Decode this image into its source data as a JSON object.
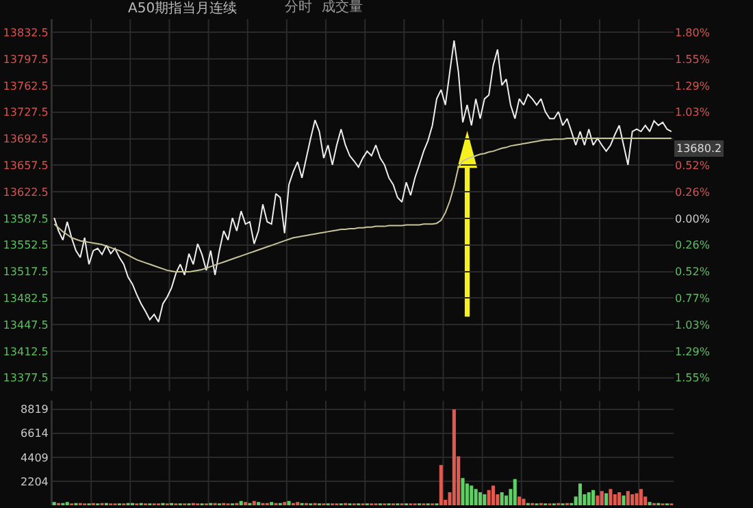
{
  "chart_data": [
    {
      "type": "line",
      "title": "A50期指当月连续",
      "annotations": [
        "分时",
        "成交量",
        {
          "text": "13680.2",
          "y": 13680.2
        }
      ],
      "categories": [
        null,
        null,
        null,
        null,
        null,
        null,
        null,
        null,
        null,
        null,
        null,
        null,
        null,
        null,
        null,
        null,
        null,
        null,
        null,
        null,
        null,
        null,
        null,
        null,
        null,
        null,
        null,
        null,
        null,
        null,
        null,
        null,
        null,
        null,
        null,
        null,
        null,
        null,
        null,
        null,
        null,
        null,
        null,
        null,
        null,
        null,
        null,
        null,
        null,
        null,
        null,
        null,
        null,
        null,
        null,
        null,
        null,
        null,
        null,
        null,
        null,
        null,
        null,
        null,
        null,
        null,
        null,
        null,
        null,
        null,
        null,
        null,
        null,
        null,
        null,
        null,
        null,
        null,
        null,
        null,
        null,
        null,
        null,
        null,
        null,
        null,
        null,
        null,
        null,
        null,
        null,
        null,
        null,
        null,
        null,
        null,
        null,
        null,
        null,
        null,
        null,
        null,
        null,
        null,
        null,
        null,
        null,
        null,
        null,
        null,
        null,
        null,
        null,
        null,
        null,
        null,
        null,
        null,
        null,
        null,
        null,
        null,
        null,
        null,
        null,
        null,
        null,
        null,
        null,
        null,
        null,
        null,
        null,
        null,
        null,
        null,
        null,
        null,
        null,
        null,
        null,
        null,
        null
      ],
      "series": [
        {
          "color": "#eeeeee",
          "values": [
            13588,
            13571,
            13559,
            13583,
            13562,
            13545,
            13536,
            13562,
            13527,
            13545,
            13548,
            13540,
            13552,
            13541,
            13548,
            13536,
            13527,
            13510,
            13501,
            13487,
            13475,
            13465,
            13454,
            13461,
            13451,
            13475,
            13484,
            13496,
            13515,
            13527,
            13513,
            13541,
            13527,
            13554,
            13540,
            13519,
            13545,
            13513,
            13545,
            13571,
            13559,
            13588,
            13571,
            13597,
            13580,
            13583,
            13554,
            13571,
            13606,
            13583,
            13580,
            13620,
            13615,
            13568,
            13632,
            13649,
            13662,
            13641,
            13667,
            13693,
            13717,
            13702,
            13667,
            13684,
            13658,
            13684,
            13705,
            13684,
            13670,
            13663,
            13655,
            13667,
            13676,
            13670,
            13684,
            13667,
            13658,
            13641,
            13632,
            13615,
            13609,
            13635,
            13618,
            13641,
            13658,
            13676,
            13690,
            13710,
            13745,
            13757,
            13737,
            13780,
            13822,
            13780,
            13714,
            13737,
            13710,
            13745,
            13719,
            13745,
            13750,
            13789,
            13810,
            13763,
            13771,
            13737,
            13719,
            13745,
            13737,
            13751,
            13745,
            13737,
            13745,
            13728,
            13719,
            13719,
            13728,
            13710,
            13719,
            13702,
            13684,
            13702,
            13684,
            13705,
            13684,
            13693,
            13684,
            13676,
            13684,
            13698,
            13710,
            13684,
            13658,
            13702,
            13705,
            13702,
            13710,
            13702,
            13716,
            13710,
            13714,
            13705,
            13702
          ]
        },
        {
          "color": "#c9c49a",
          "values": [
            13580,
            13575,
            13570,
            13566,
            13562,
            13560,
            13558,
            13557,
            13556,
            13555,
            13554,
            13553,
            13551,
            13549,
            13547,
            13545,
            13542,
            13539,
            13536,
            13533,
            13531,
            13529,
            13527,
            13525,
            13523,
            13521,
            13519,
            13518,
            13517,
            13517,
            13517,
            13517,
            13518,
            13519,
            13520,
            13522,
            13524,
            13526,
            13528,
            13530,
            13532,
            13534,
            13536,
            13538,
            13540,
            13542,
            13544,
            13546,
            13548,
            13550,
            13552,
            13554,
            13556,
            13558,
            13560,
            13562,
            13563,
            13564,
            13565,
            13566,
            13567,
            13568,
            13569,
            13570,
            13571,
            13572,
            13573,
            13573,
            13574,
            13574,
            13575,
            13575,
            13576,
            13576,
            13577,
            13577,
            13577,
            13578,
            13578,
            13578,
            13578,
            13579,
            13579,
            13579,
            13579,
            13580,
            13580,
            13580,
            13581,
            13585,
            13595,
            13610,
            13630,
            13655,
            13663,
            13666,
            13668,
            13670,
            13672,
            13673,
            13675,
            13676,
            13678,
            13680,
            13681,
            13683,
            13684,
            13685,
            13686,
            13687,
            13688,
            13689,
            13690,
            13691,
            13691,
            13692,
            13692,
            13692,
            13693,
            13693,
            13693,
            13693,
            13693,
            13693,
            13693,
            13693,
            13693,
            13693,
            13693,
            13693,
            13693,
            13693,
            13693,
            13693,
            13693,
            13693,
            13693,
            13693,
            13693,
            13693,
            13693,
            13693,
            13693
          ]
        }
      ],
      "ylim": [
        13360,
        13850
      ],
      "yticks": [
        13377.5,
        13412.5,
        13447.5,
        13482.5,
        13517.5,
        13552.5,
        13587.5,
        13622.5,
        13657.5,
        13692.5,
        13727.5,
        13762.5,
        13797.5,
        13832.5
      ],
      "y2lim": [
        -1.6744,
        1.9319
      ],
      "y2ticks": [
        {
          "value": -1.546,
          "label": "1.55%"
        },
        {
          "value": -1.288,
          "label": "1.29%"
        },
        {
          "value": -1.03,
          "label": "1.03%"
        },
        {
          "value": -0.773,
          "label": "0.77%"
        },
        {
          "value": -0.515,
          "label": "0.52%"
        },
        {
          "value": -0.258,
          "label": "0.26%"
        },
        {
          "value": 0,
          "label": "0.00%"
        },
        {
          "value": 0.258,
          "label": "0.26%"
        },
        {
          "value": 0.515,
          "label": "0.52%"
        },
        {
          "value": 0.773,
          "label": null
        },
        {
          "value": 1.03,
          "label": "1.03%"
        },
        {
          "value": 1.288,
          "label": "1.29%"
        },
        {
          "value": 1.546,
          "label": "1.55%"
        },
        {
          "value": 1.803,
          "label": "1.80%"
        }
      ],
      "grid": true
    },
    {
      "type": "bar",
      "categories": [
        null,
        null,
        null,
        null,
        null,
        null,
        null,
        null,
        null,
        null,
        null,
        null,
        null,
        null,
        null,
        null,
        null,
        null,
        null,
        null,
        null,
        null,
        null,
        null,
        null,
        null,
        null,
        null,
        null,
        null,
        null,
        null,
        null,
        null,
        null,
        null,
        null,
        null,
        null,
        null,
        null,
        null,
        null,
        null,
        null,
        null,
        null,
        null,
        null,
        null,
        null,
        null,
        null,
        null,
        null,
        null,
        null,
        null,
        null,
        null,
        null,
        null,
        null,
        null,
        null,
        null,
        null,
        null,
        null,
        null,
        null,
        null,
        null,
        null,
        null,
        null,
        null,
        null,
        null,
        null,
        null,
        null,
        null,
        null,
        null,
        null,
        null,
        null,
        null,
        null,
        null,
        null,
        null,
        null,
        null,
        null,
        null,
        null,
        null,
        null,
        null,
        null,
        null,
        null,
        null,
        null,
        null,
        null,
        null,
        null,
        null,
        null,
        null,
        null,
        null,
        null,
        null,
        null,
        null,
        null,
        null,
        null,
        null,
        null,
        null,
        null,
        null,
        null,
        null,
        null,
        null,
        null,
        null,
        null,
        null,
        null,
        null,
        null,
        null,
        null,
        null,
        null,
        null
      ],
      "values": [
        300,
        200,
        200,
        300,
        100,
        200,
        200,
        100,
        100,
        200,
        100,
        200,
        200,
        100,
        100,
        100,
        100,
        200,
        200,
        100,
        200,
        100,
        100,
        100,
        100,
        200,
        100,
        200,
        100,
        100,
        100,
        100,
        200,
        100,
        100,
        100,
        200,
        200,
        100,
        200,
        100,
        100,
        200,
        400,
        300,
        200,
        400,
        300,
        200,
        200,
        300,
        200,
        200,
        300,
        400,
        200,
        300,
        200,
        200,
        100,
        200,
        100,
        100,
        100,
        100,
        100,
        100,
        200,
        100,
        100,
        100,
        100,
        100,
        100,
        100,
        100,
        100,
        100,
        100,
        100,
        100,
        100,
        100,
        100,
        100,
        100,
        100,
        100,
        100,
        3700,
        500,
        1200,
        8800,
        4500,
        2500,
        2000,
        1800,
        1500,
        1200,
        1000,
        1400,
        1800,
        1000,
        1200,
        900,
        1500,
        2400,
        800,
        600,
        200,
        200,
        100,
        200,
        100,
        100,
        100,
        200,
        100,
        200,
        200,
        800,
        2000,
        1000,
        1200,
        1400,
        900,
        1300,
        1100,
        1500,
        1000,
        1200,
        900,
        1300,
        1000,
        1100,
        1500,
        800,
        300,
        200,
        200,
        100,
        100,
        100
      ],
      "colors": [
        "#5fcf65",
        "#e05a4f",
        "#5fcf65",
        "#5fcf65",
        "#e05a4f",
        "#5fcf65",
        "#e05a4f",
        "#e05a4f",
        "#5fcf65",
        "#e05a4f",
        "#5fcf65",
        "#e05a4f",
        "#5fcf65",
        "#e05a4f",
        "#e05a4f",
        "#5fcf65",
        "#e05a4f",
        "#5fcf65",
        "#5fcf65",
        "#e05a4f",
        "#5fcf65",
        "#e05a4f",
        "#5fcf65",
        "#e05a4f",
        "#e05a4f",
        "#5fcf65",
        "#e05a4f",
        "#5fcf65",
        "#e05a4f",
        "#5fcf65",
        "#e05a4f",
        "#5fcf65",
        "#e05a4f",
        "#e05a4f",
        "#5fcf65",
        "#e05a4f",
        "#5fcf65",
        "#e05a4f",
        "#5fcf65",
        "#e05a4f",
        "#e05a4f",
        "#5fcf65",
        "#e05a4f",
        "#5fcf65",
        "#e05a4f",
        "#5fcf65",
        "#e05a4f",
        "#5fcf65",
        "#e05a4f",
        "#e05a4f",
        "#5fcf65",
        "#e05a4f",
        "#5fcf65",
        "#e05a4f",
        "#5fcf65",
        "#e05a4f",
        "#e05a4f",
        "#5fcf65",
        "#e05a4f",
        "#5fcf65",
        "#e05a4f",
        "#5fcf65",
        "#e05a4f",
        "#5fcf65",
        "#e05a4f",
        "#e05a4f",
        "#5fcf65",
        "#e05a4f",
        "#5fcf65",
        "#e05a4f",
        "#5fcf65",
        "#e05a4f",
        "#5fcf65",
        "#e05a4f",
        "#e05a4f",
        "#5fcf65",
        "#e05a4f",
        "#5fcf65",
        "#e05a4f",
        "#5fcf65",
        "#e05a4f",
        "#5fcf65",
        "#e05a4f",
        "#e05a4f",
        "#5fcf65",
        "#e05a4f",
        "#5fcf65",
        "#e05a4f",
        "#5fcf65",
        "#e05a4f",
        "#e05a4f",
        "#e05a4f",
        "#e05a4f",
        "#e05a4f",
        "#5fcf65",
        "#5fcf65",
        "#5fcf65",
        "#5fcf65",
        "#5fcf65",
        "#5fcf65",
        "#e05a4f",
        "#e05a4f",
        "#e05a4f",
        "#5fcf65",
        "#5fcf65",
        "#5fcf65",
        "#5fcf65",
        "#e05a4f",
        "#e05a4f",
        "#5fcf65",
        "#e05a4f",
        "#5fcf65",
        "#e05a4f",
        "#5fcf65",
        "#e05a4f",
        "#5fcf65",
        "#e05a4f",
        "#5fcf65",
        "#e05a4f",
        "#5fcf65",
        "#5fcf65",
        "#5fcf65",
        "#5fcf65",
        "#5fcf65",
        "#5fcf65",
        "#e05a4f",
        "#e05a4f",
        "#5fcf65",
        "#e05a4f",
        "#e05a4f",
        "#e05a4f",
        "#5fcf65",
        "#e05a4f",
        "#e05a4f",
        "#e05a4f",
        "#e05a4f",
        "#e05a4f",
        "#5fcf65",
        "#e05a4f",
        "#5fcf65",
        "#e05a4f",
        "#5fcf65",
        "#e05a4f"
      ],
      "ylim": [
        0,
        9600
      ],
      "yticks": [
        2204,
        4409,
        6614,
        8819
      ],
      "grid": true
    }
  ]
}
